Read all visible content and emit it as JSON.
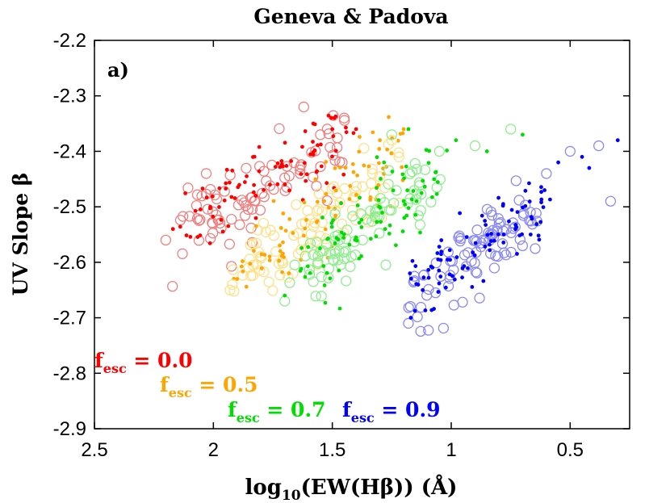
{
  "chart_data": {
    "type": "scatter",
    "title": "Geneva & Padova",
    "panel_label": "a)",
    "xlabel": {
      "pre": "log",
      "sub": "10",
      "post": "(EW(Hβ)) (Å)"
    },
    "ylabel": "UV Slope β",
    "xlim": [
      2.5,
      0.25
    ],
    "xaxis_reversed": true,
    "ylim": [
      -2.9,
      -2.2
    ],
    "xticks": [
      2.5,
      2,
      1.5,
      1,
      0.5
    ],
    "xtick_labels": [
      "2.5",
      "2",
      "1.5",
      "1",
      "0.5"
    ],
    "yticks": [
      -2.2,
      -2.3,
      -2.4,
      -2.5,
      -2.6,
      -2.7,
      -2.8,
      -2.9
    ],
    "ytick_labels": [
      "-2.2",
      "-2.3",
      "-2.4",
      "-2.5",
      "-2.6",
      "-2.7",
      "-2.8",
      "-2.9"
    ],
    "grid": false,
    "marker_styles": {
      "dot": "filled dot (Geneva)",
      "circle": "open circle (Padova)"
    },
    "series": [
      {
        "name": "fesc = 0.0",
        "legend": {
          "f": "f",
          "sub": "esc",
          "eq": " = 0.0"
        },
        "dot_color": "#ff0000",
        "circle_color": "#f08080",
        "cloud": {
          "x_start": 2.15,
          "y_start": -2.54,
          "x_end": 1.45,
          "y_end": -2.38,
          "spread": 0.035,
          "count": 170
        },
        "extras": [
          {
            "x": 1.62,
            "y": -2.32
          },
          {
            "x": 1.58,
            "y": -2.35
          },
          {
            "x": 1.55,
            "y": -2.37
          },
          {
            "x": 1.5,
            "y": -2.36
          },
          {
            "x": 1.45,
            "y": -2.34
          },
          {
            "x": 1.4,
            "y": -2.36
          },
          {
            "x": 2.03,
            "y": -2.44
          },
          {
            "x": 2.17,
            "y": -2.54
          },
          {
            "x": 2.2,
            "y": -2.56
          }
        ]
      },
      {
        "name": "fesc = 0.5",
        "legend": {
          "f": "f",
          "sub": "esc",
          "eq": " = 0.5"
        },
        "dot_color": "#ffa500",
        "circle_color": "#ffe08a",
        "cloud": {
          "x_start": 1.9,
          "y_start": -2.62,
          "x_end": 1.22,
          "y_end": -2.42,
          "spread": 0.035,
          "count": 170
        },
        "extras": [
          {
            "x": 1.92,
            "y": -2.64
          },
          {
            "x": 1.9,
            "y": -2.63
          },
          {
            "x": 1.93,
            "y": -2.65
          },
          {
            "x": 1.3,
            "y": -2.38
          },
          {
            "x": 1.25,
            "y": -2.38
          },
          {
            "x": 1.2,
            "y": -2.36
          },
          {
            "x": 1.22,
            "y": -2.41
          }
        ]
      },
      {
        "name": "fesc = 0.7",
        "legend": {
          "f": "f",
          "sub": "esc",
          "eq": " = 0.7"
        },
        "dot_color": "#00dd00",
        "circle_color": "#90ee90",
        "cloud": {
          "x_start": 1.65,
          "y_start": -2.62,
          "x_end": 1.05,
          "y_end": -2.44,
          "spread": 0.035,
          "count": 170
        },
        "extras": [
          {
            "x": 1.7,
            "y": -2.67
          },
          {
            "x": 1.7,
            "y": -2.66
          },
          {
            "x": 1.05,
            "y": -2.4
          },
          {
            "x": 0.98,
            "y": -2.38
          },
          {
            "x": 0.9,
            "y": -2.39
          },
          {
            "x": 0.85,
            "y": -2.4
          },
          {
            "x": 0.75,
            "y": -2.36
          },
          {
            "x": 0.7,
            "y": -2.37
          },
          {
            "x": 1.25,
            "y": -2.37
          },
          {
            "x": 1.18,
            "y": -2.36
          }
        ]
      },
      {
        "name": "fesc = 0.9",
        "legend": {
          "f": "f",
          "sub": "esc",
          "eq": " = 0.9"
        },
        "dot_color": "#0000ff",
        "circle_color": "#8a8af2",
        "cloud": {
          "x_start": 1.17,
          "y_start": -2.66,
          "x_end": 0.6,
          "y_end": -2.5,
          "spread": 0.03,
          "count": 180
        },
        "extras": [
          {
            "x": 1.18,
            "y": -2.71
          },
          {
            "x": 1.17,
            "y": -2.7
          },
          {
            "x": 0.6,
            "y": -2.44
          },
          {
            "x": 0.55,
            "y": -2.42
          },
          {
            "x": 0.5,
            "y": -2.4
          },
          {
            "x": 0.45,
            "y": -2.41
          },
          {
            "x": 0.38,
            "y": -2.39
          },
          {
            "x": 0.3,
            "y": -2.38
          },
          {
            "x": 0.33,
            "y": -2.49
          },
          {
            "x": 0.42,
            "y": -2.43
          }
        ]
      }
    ]
  }
}
